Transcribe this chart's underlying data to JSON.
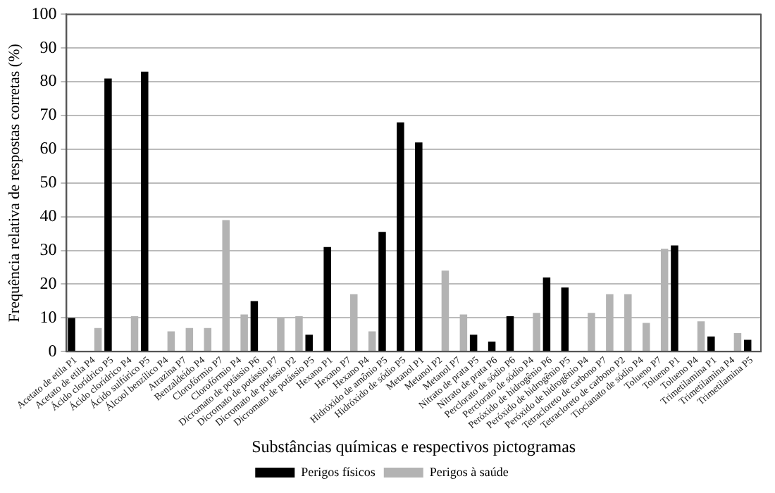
{
  "chart_data": {
    "type": "bar",
    "xlabel": "Substâncias químicas e respectivos pictogramas",
    "ylabel": "Frequência relativa de respostas corretas (%)",
    "categories": [
      "Acetato de etila P1",
      "Acetato de etila P4",
      "Ácido clorídrico P5",
      "Ácido clorídrico P4",
      "Ácido sulfúrico P5",
      "Álcool benzílico P4",
      "Atrazina P7",
      "Benzaldeído P4",
      "Clorofórmio P7",
      "Clorofórmio P4",
      "Dicromato de potássio P6",
      "Dicromato de potássio P7",
      "Dicromato de potássio P2",
      "Dicromato de potássio P5",
      "Hexano P1",
      "Hexano P7",
      "Hexano P4",
      "Hidróxido de amônio P5",
      "Hidróxido de sódio P5",
      "Metanol P1",
      "Metanol P2",
      "Metanol P7",
      "Nitrato de prata P5",
      "Nitrato de prata P6",
      "Perclorato de sódio P6",
      "Perclorato de sódio P4",
      "Peróxido de hidrogênio P6",
      "Peróxido de hidrogênio P5",
      "Peróxido de hidrogênio P4",
      "Tetracloreto de carbono P7",
      "Tetracloreto de carbono P2",
      "Tiocianato de sódio P4",
      "Tolueno P7",
      "Tolueno P1",
      "Tolueno P4",
      "Trimetilamina P1",
      "Trimetilamina P4",
      "Trimetilamina P5"
    ],
    "series": [
      {
        "name": "Perigos físicos",
        "color": "#000000",
        "values": [
          10,
          null,
          81,
          null,
          83,
          null,
          null,
          null,
          null,
          null,
          15,
          null,
          null,
          5,
          31,
          null,
          null,
          35.5,
          68,
          62,
          null,
          null,
          5,
          3,
          10.5,
          null,
          22,
          19,
          null,
          null,
          null,
          null,
          null,
          31.5,
          null,
          4.5,
          null,
          3.5
        ]
      },
      {
        "name": "Perigos à saúde",
        "color": "#b3b3b3",
        "values": [
          null,
          7,
          null,
          10.5,
          null,
          6,
          7,
          7,
          39,
          11,
          null,
          10,
          10.5,
          null,
          null,
          17,
          6,
          null,
          null,
          null,
          24,
          11,
          null,
          null,
          null,
          11.5,
          null,
          null,
          11.5,
          17,
          17,
          8.5,
          30.5,
          null,
          9,
          null,
          5.5,
          null
        ]
      }
    ],
    "ylim": [
      0,
      100
    ],
    "yticks": [
      0,
      10,
      20,
      30,
      40,
      50,
      60,
      70,
      80,
      90,
      100
    ],
    "grid": "y",
    "legend": "bottom"
  }
}
